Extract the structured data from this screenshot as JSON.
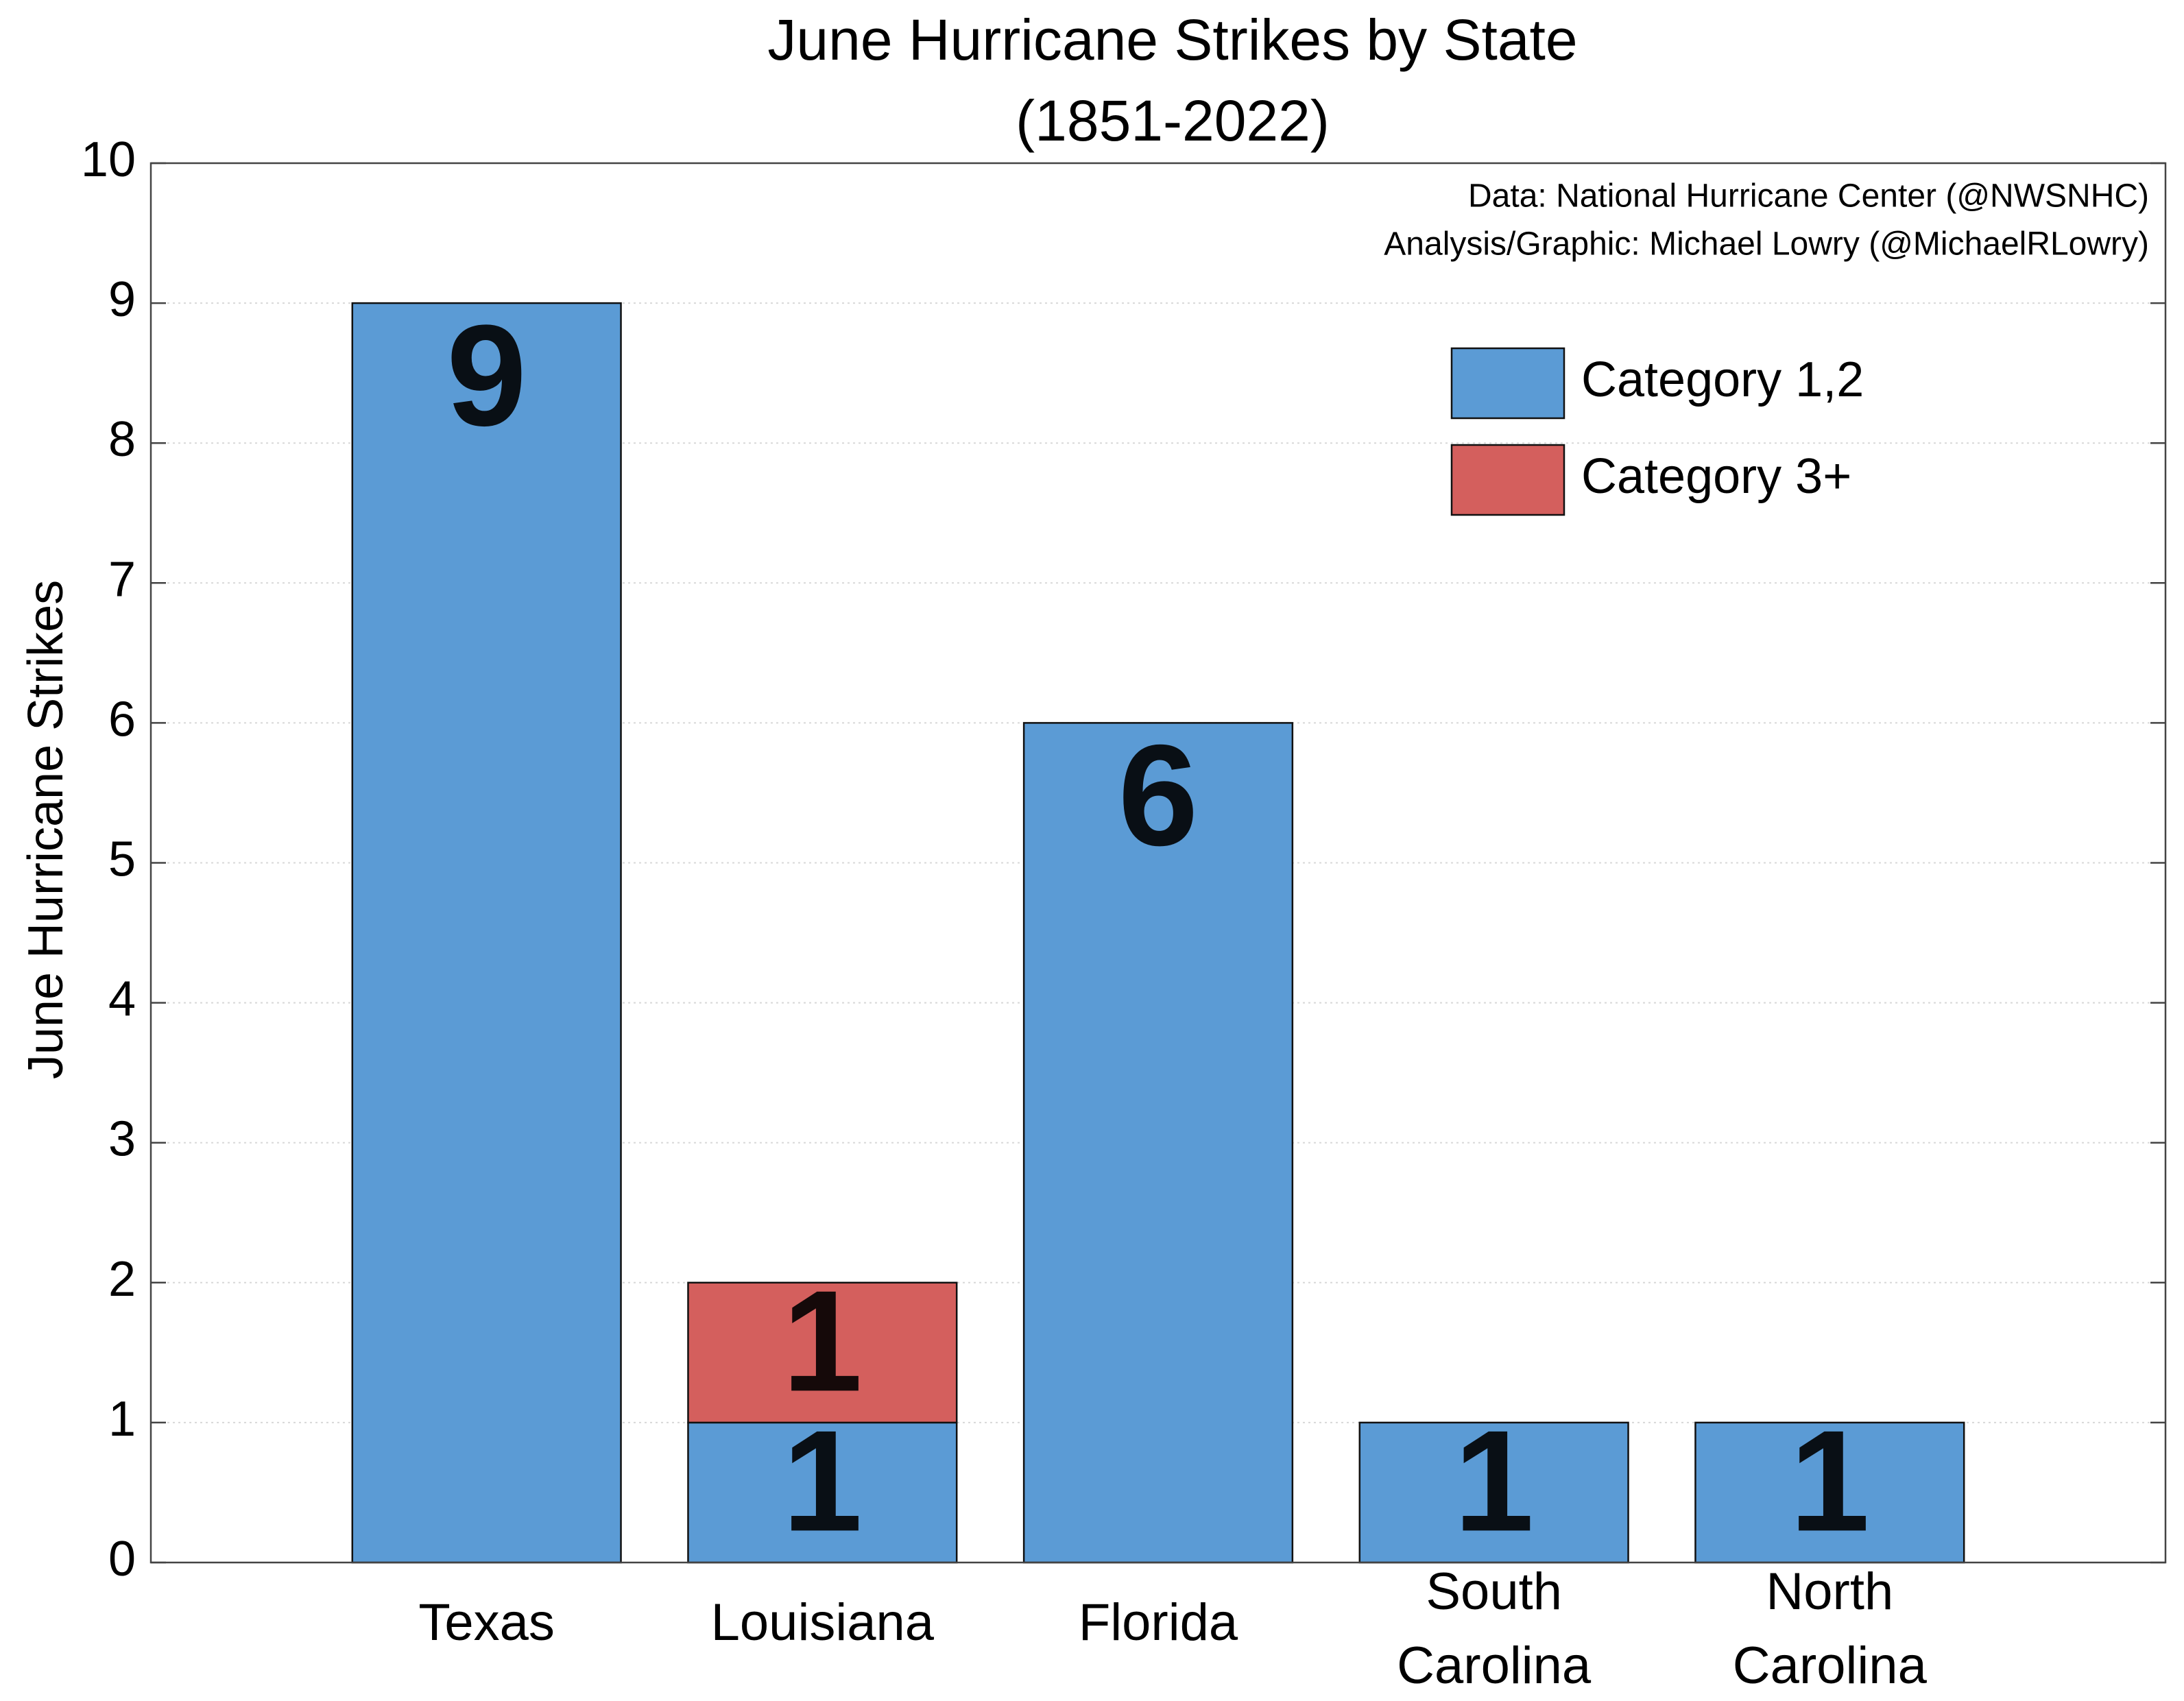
{
  "chart_data": {
    "type": "stacked_bar",
    "title": "June Hurricane Strikes by State",
    "subtitle": "(1851-2022)",
    "ylabel": "June Hurricane Strikes",
    "annotations": [
      "Data: National Hurricane Center (@NWSNHC)",
      "Analysis/Graphic: Michael Lowry (@MichaelRLowry)"
    ],
    "categories": [
      "Texas",
      "Louisiana",
      "Florida",
      "South Carolina",
      "North Carolina"
    ],
    "series": [
      {
        "name": "Category 1,2",
        "color": "#5b9bd5",
        "label_color": "#2d5f8e",
        "values": [
          9,
          1,
          6,
          1,
          1
        ]
      },
      {
        "name": "Category 3+",
        "color": "#d45f5d",
        "label_color": "#8c2727",
        "values": [
          0,
          1,
          0,
          0,
          0
        ]
      }
    ],
    "ylim": [
      0,
      10
    ],
    "yticks": [
      0,
      1,
      2,
      3,
      4,
      5,
      6,
      7,
      8,
      9,
      10
    ],
    "grid": true,
    "legend": "upper right"
  }
}
